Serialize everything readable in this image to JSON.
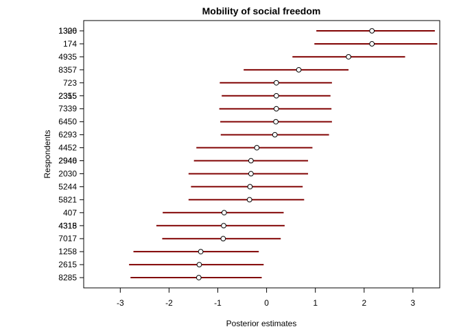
{
  "chart_data": {
    "type": "scatter",
    "title": "Mobility of social freedom",
    "xlabel": "Posterior estimates",
    "ylabel": "Respondents",
    "xlim": [
      -3.75,
      3.55
    ],
    "xticks": [
      -3,
      -2,
      -1,
      0,
      1,
      2,
      3
    ],
    "grid": false,
    "legend": "none",
    "series_color": "#800000",
    "point_fill": "#ffffff",
    "rows": [
      {
        "label": "1300",
        "overlap_label": "1326",
        "estimate": 2.16,
        "lower": 1.02,
        "upper": 3.45
      },
      {
        "label": "174",
        "estimate": 2.16,
        "lower": 0.98,
        "upper": 3.5
      },
      {
        "label": "4935",
        "estimate": 1.68,
        "lower": 0.53,
        "upper": 2.84
      },
      {
        "label": "8357",
        "estimate": 0.66,
        "lower": -0.47,
        "upper": 1.68
      },
      {
        "label": "723",
        "estimate": 0.2,
        "lower": -0.96,
        "upper": 1.34
      },
      {
        "label": "2315",
        "overlap_label": "2355",
        "estimate": 0.2,
        "lower": -0.92,
        "upper": 1.31
      },
      {
        "label": "7339",
        "estimate": 0.2,
        "lower": -0.97,
        "upper": 1.33
      },
      {
        "label": "6450",
        "estimate": 0.19,
        "lower": -0.95,
        "upper": 1.34
      },
      {
        "label": "6293",
        "estimate": 0.17,
        "lower": -0.94,
        "upper": 1.28
      },
      {
        "label": "4452",
        "estimate": -0.2,
        "lower": -1.44,
        "upper": 0.94
      },
      {
        "label": "2940",
        "overlap_label": "2946",
        "estimate": -0.32,
        "lower": -1.49,
        "upper": 0.85
      },
      {
        "label": "2030",
        "estimate": -0.32,
        "lower": -1.6,
        "upper": 0.85
      },
      {
        "label": "5244",
        "estimate": -0.34,
        "lower": -1.55,
        "upper": 0.74
      },
      {
        "label": "5821",
        "estimate": -0.35,
        "lower": -1.6,
        "upper": 0.77
      },
      {
        "label": "407",
        "estimate": -0.87,
        "lower": -2.13,
        "upper": 0.35
      },
      {
        "label": "4318",
        "overlap_label": "4315",
        "estimate": -0.88,
        "lower": -2.26,
        "upper": 0.37
      },
      {
        "label": "7017",
        "estimate": -0.89,
        "lower": -2.14,
        "upper": 0.29
      },
      {
        "label": "1258",
        "estimate": -1.35,
        "lower": -2.73,
        "upper": -0.16
      },
      {
        "label": "2615",
        "estimate": -1.38,
        "lower": -2.82,
        "upper": -0.06
      },
      {
        "label": "8285",
        "estimate": -1.39,
        "lower": -2.79,
        "upper": -0.1
      }
    ]
  }
}
